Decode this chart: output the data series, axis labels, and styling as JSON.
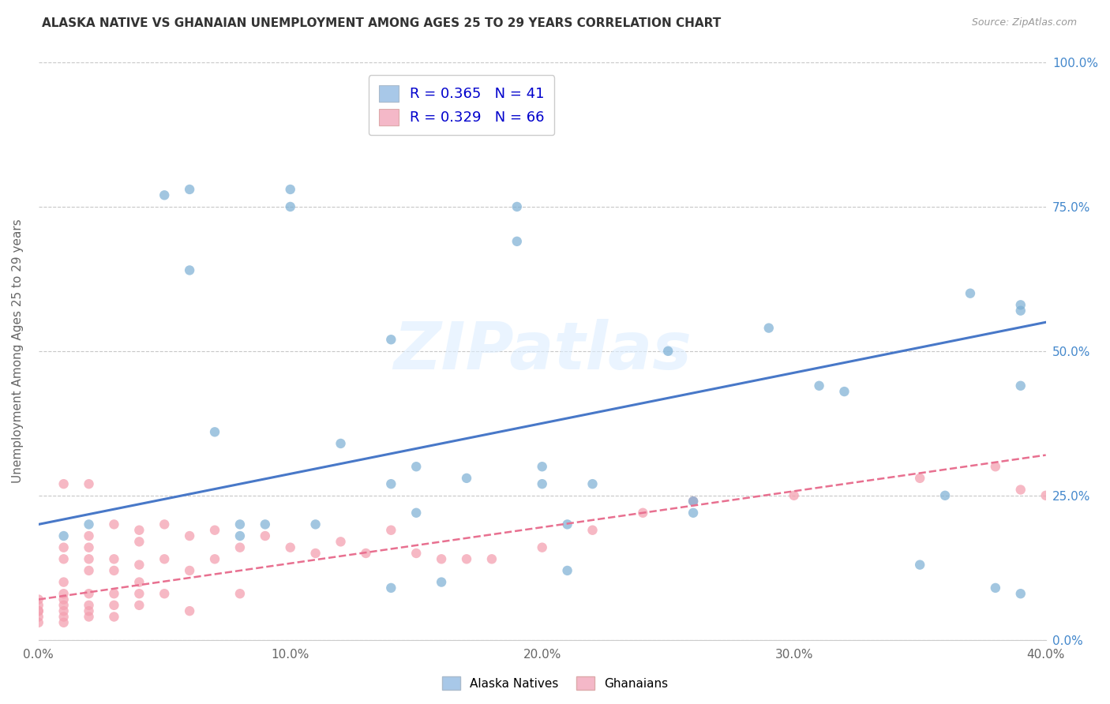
{
  "title": "ALASKA NATIVE VS GHANAIAN UNEMPLOYMENT AMONG AGES 25 TO 29 YEARS CORRELATION CHART",
  "source": "Source: ZipAtlas.com",
  "xlabel_ticks": [
    "0.0%",
    "10.0%",
    "20.0%",
    "30.0%",
    "40.0%"
  ],
  "xlabel_vals": [
    0.0,
    0.1,
    0.2,
    0.3,
    0.4
  ],
  "ylabel": "Unemployment Among Ages 25 to 29 years",
  "ylabel_ticks_right": [
    "0.0%",
    "25.0%",
    "50.0%",
    "75.0%",
    "100.0%"
  ],
  "ylabel_vals_right": [
    0.0,
    0.25,
    0.5,
    0.75,
    1.0
  ],
  "xmin": 0.0,
  "xmax": 0.4,
  "ymin": 0.0,
  "ymax": 1.0,
  "alaska_R": 0.365,
  "alaska_N": 41,
  "ghanaian_R": 0.329,
  "ghanaian_N": 66,
  "alaska_color": "#7bafd4",
  "ghanaian_color": "#f4a0b0",
  "alaska_line_color": "#4878c8",
  "ghanaian_line_color": "#e87090",
  "alaska_points": [
    [
      0.01,
      0.18
    ],
    [
      0.02,
      0.2
    ],
    [
      0.05,
      0.77
    ],
    [
      0.06,
      0.78
    ],
    [
      0.06,
      0.64
    ],
    [
      0.07,
      0.36
    ],
    [
      0.08,
      0.2
    ],
    [
      0.08,
      0.18
    ],
    [
      0.09,
      0.2
    ],
    [
      0.1,
      0.78
    ],
    [
      0.1,
      0.75
    ],
    [
      0.11,
      0.2
    ],
    [
      0.12,
      0.34
    ],
    [
      0.14,
      0.52
    ],
    [
      0.14,
      0.27
    ],
    [
      0.14,
      0.09
    ],
    [
      0.15,
      0.3
    ],
    [
      0.15,
      0.22
    ],
    [
      0.16,
      0.1
    ],
    [
      0.17,
      0.28
    ],
    [
      0.19,
      0.75
    ],
    [
      0.19,
      0.69
    ],
    [
      0.2,
      0.3
    ],
    [
      0.2,
      0.27
    ],
    [
      0.21,
      0.2
    ],
    [
      0.21,
      0.12
    ],
    [
      0.22,
      0.27
    ],
    [
      0.25,
      0.5
    ],
    [
      0.26,
      0.24
    ],
    [
      0.26,
      0.22
    ],
    [
      0.29,
      0.54
    ],
    [
      0.31,
      0.44
    ],
    [
      0.32,
      0.43
    ],
    [
      0.35,
      0.13
    ],
    [
      0.36,
      0.25
    ],
    [
      0.37,
      0.6
    ],
    [
      0.38,
      0.09
    ],
    [
      0.39,
      0.57
    ],
    [
      0.39,
      0.44
    ],
    [
      0.39,
      0.08
    ],
    [
      0.39,
      0.58
    ]
  ],
  "ghanaian_points": [
    [
      0.0,
      0.05
    ],
    [
      0.0,
      0.04
    ],
    [
      0.0,
      0.06
    ],
    [
      0.0,
      0.03
    ],
    [
      0.0,
      0.07
    ],
    [
      0.0,
      0.05
    ],
    [
      0.01,
      0.16
    ],
    [
      0.01,
      0.14
    ],
    [
      0.01,
      0.1
    ],
    [
      0.01,
      0.07
    ],
    [
      0.01,
      0.06
    ],
    [
      0.01,
      0.05
    ],
    [
      0.01,
      0.04
    ],
    [
      0.01,
      0.03
    ],
    [
      0.01,
      0.08
    ],
    [
      0.02,
      0.18
    ],
    [
      0.02,
      0.16
    ],
    [
      0.02,
      0.14
    ],
    [
      0.02,
      0.12
    ],
    [
      0.02,
      0.08
    ],
    [
      0.02,
      0.06
    ],
    [
      0.02,
      0.05
    ],
    [
      0.02,
      0.04
    ],
    [
      0.03,
      0.2
    ],
    [
      0.03,
      0.14
    ],
    [
      0.03,
      0.12
    ],
    [
      0.03,
      0.08
    ],
    [
      0.03,
      0.06
    ],
    [
      0.03,
      0.04
    ],
    [
      0.04,
      0.19
    ],
    [
      0.04,
      0.17
    ],
    [
      0.04,
      0.13
    ],
    [
      0.04,
      0.1
    ],
    [
      0.04,
      0.08
    ],
    [
      0.04,
      0.06
    ],
    [
      0.05,
      0.2
    ],
    [
      0.05,
      0.14
    ],
    [
      0.05,
      0.08
    ],
    [
      0.06,
      0.18
    ],
    [
      0.06,
      0.12
    ],
    [
      0.06,
      0.05
    ],
    [
      0.07,
      0.19
    ],
    [
      0.07,
      0.14
    ],
    [
      0.08,
      0.16
    ],
    [
      0.08,
      0.08
    ],
    [
      0.09,
      0.18
    ],
    [
      0.1,
      0.16
    ],
    [
      0.11,
      0.15
    ],
    [
      0.12,
      0.17
    ],
    [
      0.13,
      0.15
    ],
    [
      0.14,
      0.19
    ],
    [
      0.15,
      0.15
    ],
    [
      0.16,
      0.14
    ],
    [
      0.17,
      0.14
    ],
    [
      0.18,
      0.14
    ],
    [
      0.2,
      0.16
    ],
    [
      0.22,
      0.19
    ],
    [
      0.24,
      0.22
    ],
    [
      0.26,
      0.24
    ],
    [
      0.3,
      0.25
    ],
    [
      0.35,
      0.28
    ],
    [
      0.38,
      0.3
    ],
    [
      0.39,
      0.26
    ],
    [
      0.4,
      0.25
    ],
    [
      0.01,
      0.27
    ],
    [
      0.02,
      0.27
    ]
  ],
  "alaska_trendline": [
    [
      0.0,
      0.2
    ],
    [
      0.4,
      0.55
    ]
  ],
  "ghanaian_trendline": [
    [
      0.0,
      0.07
    ],
    [
      0.4,
      0.32
    ]
  ],
  "watermark": "ZIPatlas",
  "background_color": "#ffffff",
  "grid_color": "#c8c8c8",
  "legend_box_color_alaska": "#a8c8e8",
  "legend_box_color_ghanaian": "#f4b8c8"
}
